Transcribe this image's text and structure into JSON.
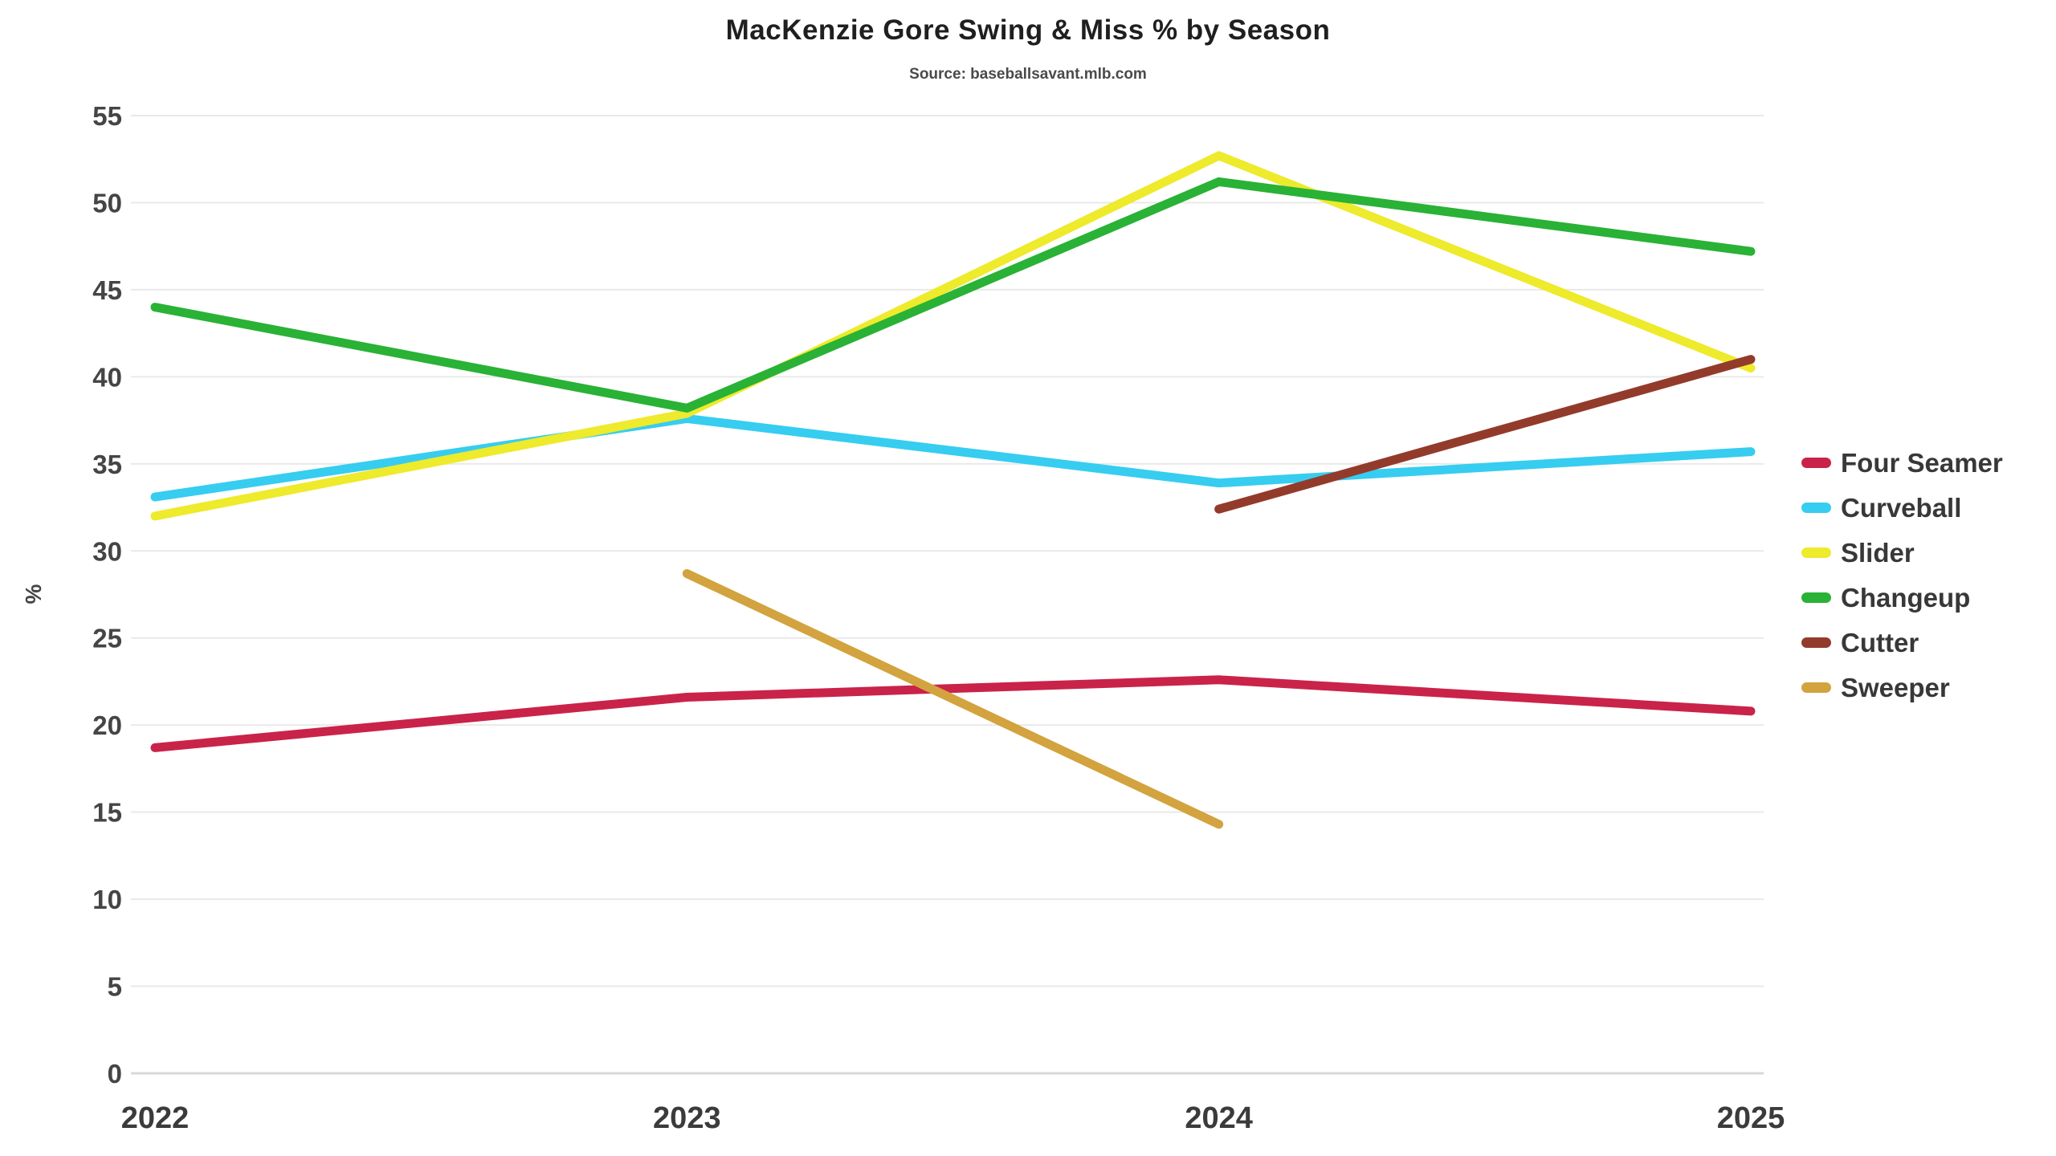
{
  "title": "MacKenzie Gore Swing & Miss % by Season",
  "subtitle": "Source: baseballsavant.mlb.com",
  "chart_data": {
    "type": "line",
    "title": "MacKenzie Gore Swing & Miss % by Season",
    "subtitle": "Source: baseballsavant.mlb.com",
    "x": [
      2022,
      2023,
      2024,
      2025
    ],
    "xlabel": "",
    "ylabel": "%",
    "ylim": [
      0,
      55
    ],
    "ytick_step": 5,
    "grid": "horizontal",
    "legend_position": "right",
    "series": [
      {
        "name": "Four Seamer",
        "color": "#c9234a",
        "values": [
          18.7,
          21.6,
          22.6,
          20.8
        ]
      },
      {
        "name": "Curveball",
        "color": "#36cdf0",
        "values": [
          33.1,
          37.6,
          33.9,
          35.7
        ]
      },
      {
        "name": "Slider",
        "color": "#eeea2c",
        "values": [
          32.0,
          37.9,
          52.7,
          40.5
        ]
      },
      {
        "name": "Changeup",
        "color": "#29b235",
        "values": [
          44.0,
          38.2,
          51.2,
          47.2
        ]
      },
      {
        "name": "Cutter",
        "color": "#933b2b",
        "values": [
          null,
          null,
          32.4,
          41.0
        ]
      },
      {
        "name": "Sweeper",
        "color": "#d2a33e",
        "values": [
          null,
          28.7,
          14.3,
          null
        ]
      }
    ]
  }
}
